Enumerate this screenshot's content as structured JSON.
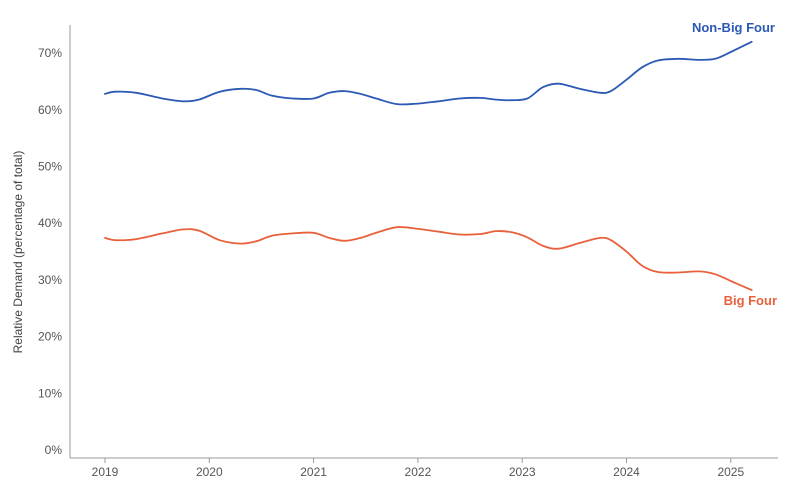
{
  "chart_data": {
    "type": "line",
    "title": "",
    "xlabel": "",
    "ylabel": "Relative Demand (percentage of total)",
    "x_ticks": [
      "2019",
      "2020",
      "2021",
      "2022",
      "2023",
      "2024",
      "2025"
    ],
    "y_ticks": [
      "0%",
      "10%",
      "20%",
      "30%",
      "40%",
      "50%",
      "60%",
      "70%"
    ],
    "ylim": [
      0,
      75
    ],
    "xlim": [
      2019,
      2025.25
    ],
    "grid": false,
    "series": [
      {
        "name": "Non-Big Four",
        "color": "#2b59b3",
        "x": [
          2019.0,
          2019.1,
          2019.3,
          2019.55,
          2019.75,
          2019.9,
          2020.1,
          2020.3,
          2020.45,
          2020.6,
          2020.8,
          2021.0,
          2021.15,
          2021.3,
          2021.45,
          2021.6,
          2021.8,
          2022.0,
          2022.2,
          2022.4,
          2022.6,
          2022.75,
          2022.9,
          2023.05,
          2023.2,
          2023.35,
          2023.55,
          2023.75,
          2023.85,
          2024.0,
          2024.15,
          2024.3,
          2024.5,
          2024.7,
          2024.85,
          2025.0,
          2025.2
        ],
        "values": [
          62.8,
          63.2,
          63.0,
          62.0,
          61.5,
          61.8,
          63.2,
          63.7,
          63.5,
          62.5,
          62.0,
          62.0,
          63.0,
          63.3,
          62.8,
          62.0,
          61.0,
          61.1,
          61.5,
          62.0,
          62.1,
          61.8,
          61.7,
          62.0,
          64.0,
          64.6,
          63.7,
          63.0,
          63.3,
          65.3,
          67.5,
          68.7,
          69.0,
          68.8,
          69.0,
          70.2,
          72.0
        ]
      },
      {
        "name": "Big Four",
        "color": "#e8613c",
        "x": [
          2019.0,
          2019.1,
          2019.3,
          2019.55,
          2019.75,
          2019.9,
          2020.1,
          2020.3,
          2020.45,
          2020.6,
          2020.8,
          2021.0,
          2021.15,
          2021.3,
          2021.45,
          2021.6,
          2021.8,
          2022.0,
          2022.2,
          2022.4,
          2022.6,
          2022.75,
          2022.9,
          2023.05,
          2023.2,
          2023.35,
          2023.55,
          2023.75,
          2023.85,
          2024.0,
          2024.15,
          2024.3,
          2024.5,
          2024.7,
          2024.85,
          2025.0,
          2025.2
        ],
        "values": [
          37.4,
          37.0,
          37.2,
          38.2,
          38.9,
          38.7,
          37.0,
          36.4,
          36.8,
          37.8,
          38.2,
          38.3,
          37.4,
          36.9,
          37.4,
          38.3,
          39.3,
          39.0,
          38.5,
          38.0,
          38.1,
          38.6,
          38.4,
          37.5,
          36.0,
          35.5,
          36.5,
          37.4,
          37.0,
          35.0,
          32.5,
          31.4,
          31.3,
          31.5,
          31.0,
          29.8,
          28.2
        ]
      }
    ]
  }
}
